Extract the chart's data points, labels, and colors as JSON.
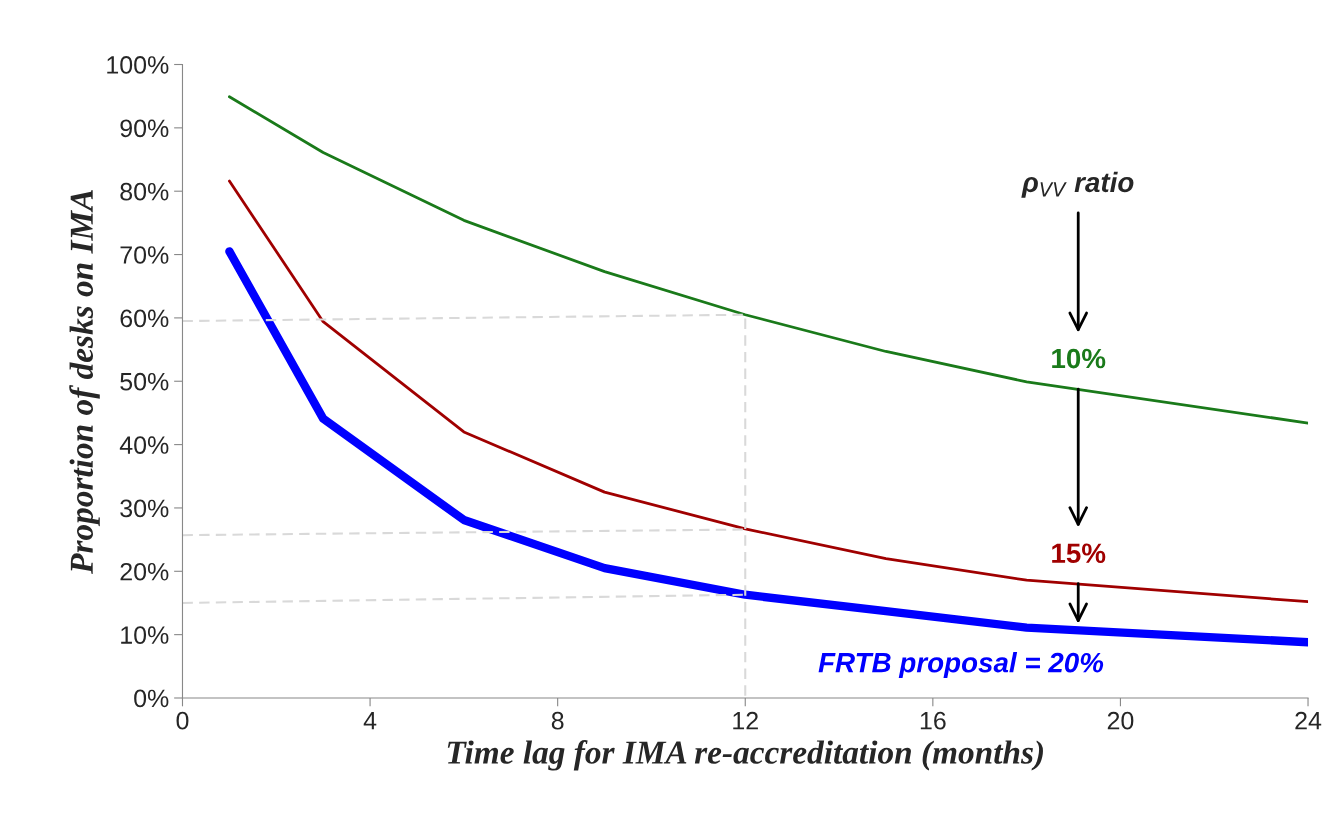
{
  "chart_data": {
    "type": "line",
    "xlabel": "Time lag for IMA re-accreditation (months)",
    "ylabel": "Proportion of desks on IMA",
    "legend_title": "ρ$_{VV}$ ratio",
    "series": [
      {
        "name": "10%",
        "color": "#1a7a1a",
        "x": [
          1,
          3,
          6,
          9,
          12,
          15,
          18,
          24
        ],
        "values": [
          94.9,
          86.1,
          75.4,
          67.3,
          60.5,
          54.7,
          49.9,
          43.4
        ]
      },
      {
        "name": "15%",
        "color": "#a00000",
        "x": [
          1,
          3,
          6,
          9,
          12,
          15,
          18,
          24
        ],
        "values": [
          81.6,
          59.4,
          42.0,
          32.5,
          26.7,
          22.0,
          18.6,
          15.2
        ]
      },
      {
        "name": "FRTB proposal = 20%",
        "color": "#0000ff",
        "x": [
          1,
          3,
          6,
          9,
          12,
          15,
          18,
          24
        ],
        "values": [
          70.5,
          44.1,
          28.1,
          20.5,
          16.3,
          13.7,
          11.1,
          8.8
        ]
      },
      {
        "color": "#d9d9d9",
        "line_style": "dashed",
        "x": [
          0,
          12,
          12
        ],
        "values": [
          59.5,
          60.5,
          0
        ]
      },
      {
        "color": "#d9d9d9",
        "line_style": "dashed",
        "x": [
          0,
          12
        ],
        "values": [
          25.7,
          26.6
        ]
      },
      {
        "color": "#d9d9d9",
        "line_style": "dashed",
        "x": [
          0,
          12
        ],
        "values": [
          15.0,
          16.3
        ]
      }
    ],
    "xlim": [
      0,
      24
    ],
    "xticks": [
      0,
      4,
      8,
      12,
      16,
      20,
      24
    ],
    "ylim": [
      0,
      100
    ],
    "yticks": [
      {
        "value": 0,
        "label": "0%"
      },
      {
        "value": 10,
        "label": "10%"
      },
      {
        "value": 20,
        "label": "20%"
      },
      {
        "value": 30,
        "label": "30%"
      },
      {
        "value": 40,
        "label": "40%"
      },
      {
        "value": 50,
        "label": "50%"
      },
      {
        "value": 60,
        "label": "60%"
      },
      {
        "value": 70,
        "label": "70%"
      },
      {
        "value": 80,
        "label": "80%"
      },
      {
        "value": 90,
        "label": "90%"
      },
      {
        "value": 100,
        "label": "100%"
      }
    ],
    "grid": false,
    "legend": false
  }
}
